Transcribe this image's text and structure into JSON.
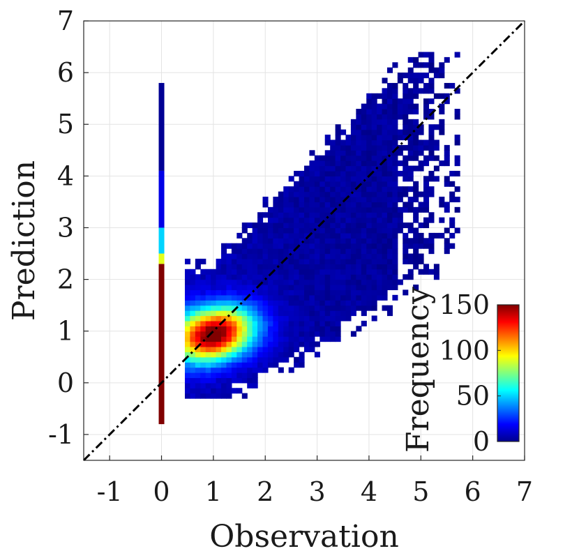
{
  "chart_data": {
    "type": "heatmap",
    "subtype": "2d-histogram-scatter",
    "title": "",
    "xlabel": "Observation",
    "ylabel": "Prediction",
    "xlim": [
      -1.5,
      7
    ],
    "ylim": [
      -1.5,
      7
    ],
    "xticks": [
      -1,
      0,
      1,
      2,
      3,
      4,
      5,
      6,
      7
    ],
    "yticks": [
      -1,
      0,
      1,
      2,
      3,
      4,
      5,
      6,
      7
    ],
    "xtick_labels": [
      "-1",
      "0",
      "1",
      "2",
      "3",
      "4",
      "5",
      "6",
      "7"
    ],
    "ytick_labels": [
      "-1",
      "0",
      "1",
      "2",
      "3",
      "4",
      "5",
      "6",
      "7"
    ],
    "grid": true,
    "reference_line": {
      "label": "1:1 line",
      "style": "dash-dot",
      "color": "#000000",
      "x": [
        -1.5,
        7
      ],
      "y": [
        -1.5,
        7
      ]
    },
    "bin_size": 0.1,
    "zero_column": {
      "x": 0,
      "segments": [
        {
          "y_from": -0.8,
          "y_to": 2.3,
          "frequency": 150
        },
        {
          "y_from": 2.3,
          "y_to": 2.5,
          "frequency": 90
        },
        {
          "y_from": 2.5,
          "y_to": 3.0,
          "frequency": 50
        },
        {
          "y_from": 3.0,
          "y_to": 4.1,
          "frequency": 15
        },
        {
          "y_from": 4.1,
          "y_to": 5.8,
          "frequency": 3
        }
      ]
    },
    "density_model": {
      "peak_frequency": 150,
      "peak_x": 1.0,
      "peak_y": 0.95,
      "trend_slope": 0.82,
      "trend_intercept": 0.1,
      "x_range": [
        0.45,
        5.7
      ]
    },
    "colorbar": {
      "label": "Frequency",
      "min": 0,
      "max": 150,
      "ticks": [
        0,
        50,
        100,
        150
      ],
      "tick_labels": [
        "0",
        "50",
        "100",
        "150"
      ],
      "colormap": "jet"
    }
  }
}
